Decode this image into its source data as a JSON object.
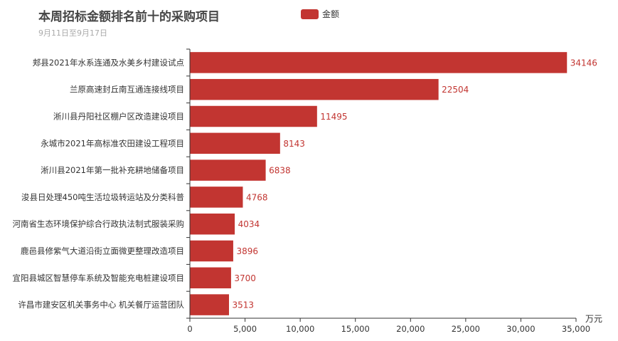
{
  "title": "本周招标金额排名前十的采购项目",
  "subtitle": "9月11日至9月17日",
  "legend": {
    "label": "金额",
    "color": "#c23531"
  },
  "chart_data": {
    "type": "bar",
    "orientation": "horizontal",
    "title": "本周招标金额排名前十的采购项目",
    "subtitle": "9月11日至9月17日",
    "xlabel": "万元",
    "ylabel": "",
    "xlim": [
      0,
      35000
    ],
    "x_ticks": [
      "0",
      "5,000",
      "10,000",
      "15,000",
      "20,000",
      "25,000",
      "30,000",
      "35,000"
    ],
    "x_tick_values": [
      0,
      5000,
      10000,
      15000,
      20000,
      25000,
      30000,
      35000
    ],
    "grid": false,
    "legend_position": "top-center",
    "categories": [
      "郏县2021年水系连通及水美乡村建设试点",
      "兰原高速封丘南互通连接线项目",
      "淅川县丹阳社区棚户区改造建设项目",
      "永城市2021年高标准农田建设工程项目",
      "淅川县2021年第一批补充耕地储备项目",
      "浚县日处理450吨生活垃圾转运站及分类科普",
      "河南省生态环境保护综合行政执法制式服装采购",
      "鹿邑县修紫气大道沿街立面微更整理改造项目",
      "宜阳县城区智慧停车系统及智能充电桩建设项目",
      "许昌市建安区机关事务中心 机关餐厅运营团队"
    ],
    "series": [
      {
        "name": "金额",
        "color": "#c23531",
        "values": [
          34146,
          22504,
          11495,
          8143,
          6838,
          4768,
          4034,
          3896,
          3700,
          3513
        ]
      }
    ]
  }
}
